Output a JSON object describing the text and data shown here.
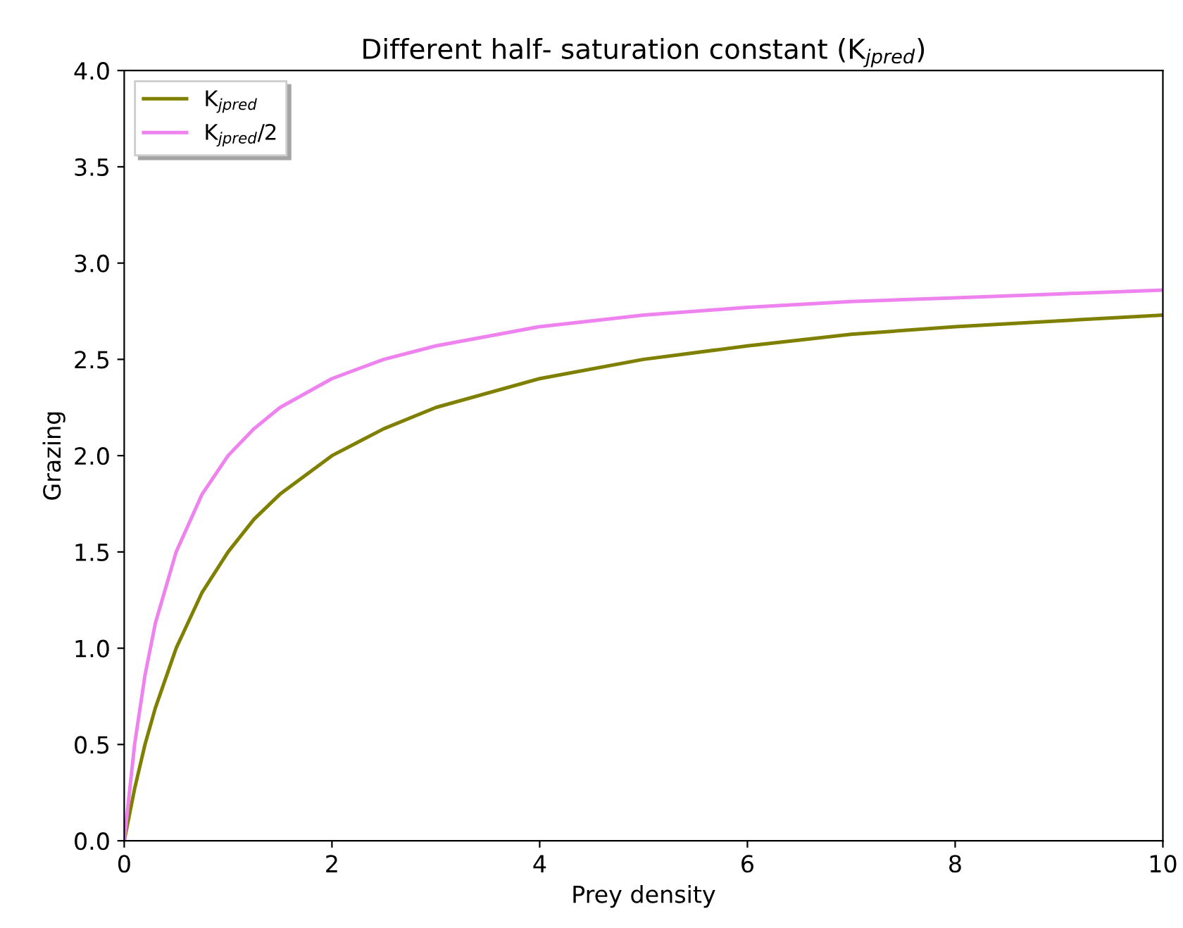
{
  "chart_data": {
    "type": "line",
    "title": "Different half- saturation constant (K$_{jpred}$)",
    "xlabel": "Prey density",
    "ylabel": "Grazing",
    "x": [
      0,
      0.1,
      0.2,
      0.3,
      0.5,
      0.75,
      1,
      1.25,
      1.5,
      2,
      2.5,
      3,
      4,
      5,
      6,
      7,
      8,
      9,
      10
    ],
    "series": [
      {
        "name": "K$_{jpred}$",
        "color": "#808000",
        "values": [
          0,
          0.27,
          0.5,
          0.69,
          1.0,
          1.29,
          1.5,
          1.67,
          1.8,
          2.0,
          2.14,
          2.25,
          2.4,
          2.5,
          2.57,
          2.63,
          2.67,
          2.7,
          2.73
        ]
      },
      {
        "name": "K$_{jpred}$/2",
        "color": "#ee82ee",
        "values": [
          0,
          0.5,
          0.86,
          1.13,
          1.5,
          1.8,
          2.0,
          2.14,
          2.25,
          2.4,
          2.5,
          2.57,
          2.67,
          2.73,
          2.77,
          2.8,
          2.82,
          2.84,
          2.86
        ]
      }
    ],
    "xlim": [
      0,
      10
    ],
    "ylim": [
      0,
      4.0
    ],
    "xticks": [
      0,
      2,
      4,
      6,
      8,
      10
    ],
    "yticks": [
      {
        "value": 0,
        "label": "0.0"
      },
      {
        "value": 0.5,
        "label": "0.5"
      },
      {
        "value": 1,
        "label": "1.0"
      },
      {
        "value": 1.5,
        "label": "1.5"
      },
      {
        "value": 2,
        "label": "2.0"
      },
      {
        "value": 2.5,
        "label": "2.5"
      },
      {
        "value": 3,
        "label": "3.0"
      },
      {
        "value": 3.5,
        "label": "3.5"
      },
      {
        "value": 4,
        "label": "4.0"
      }
    ],
    "legend": "top left",
    "grid": false,
    "line_style": "solid",
    "marker": "none"
  }
}
